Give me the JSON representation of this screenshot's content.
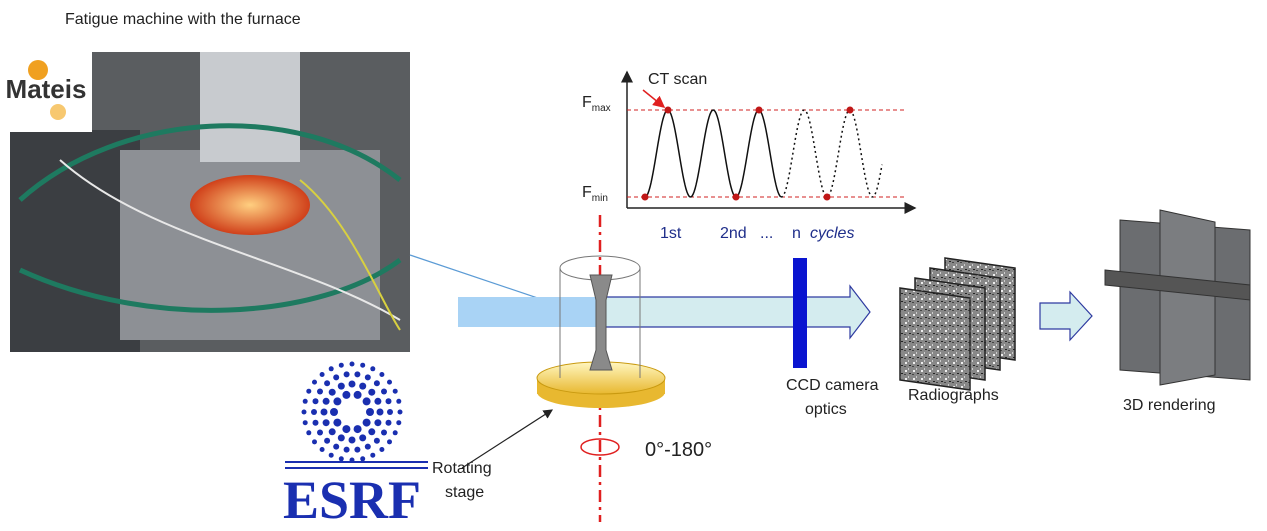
{
  "title": "Fatigue machine with the furnace",
  "logos": {
    "mateis": "Mateis",
    "esrf": "ESRF"
  },
  "graph": {
    "annotation": "CT scan",
    "fmax": {
      "base": "F",
      "sub": "max"
    },
    "fmin": {
      "base": "F",
      "sub": "min"
    },
    "cycle_labels": {
      "first": "1st",
      "second": "2nd",
      "dots": "...",
      "n": "n",
      "unit": "cycles"
    }
  },
  "labels": {
    "ccd": [
      "CCD camera",
      "optics"
    ],
    "radiographs": "Radiographs",
    "rendering": "3D rendering",
    "stage": [
      "Rotating",
      "stage"
    ],
    "rotation": "0°-180°"
  }
}
